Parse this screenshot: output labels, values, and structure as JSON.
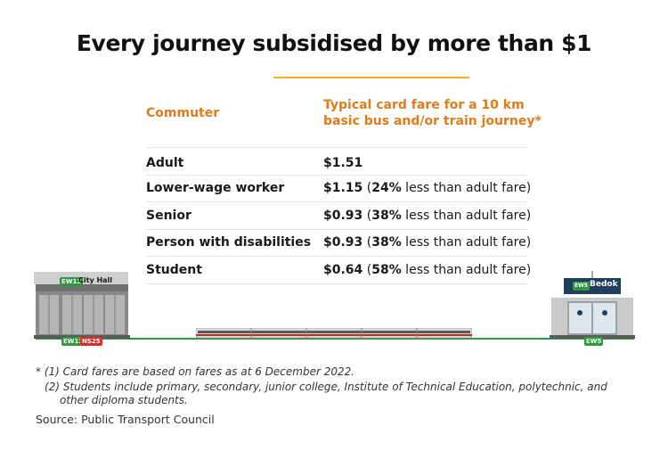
{
  "title": "Every journey subsidised by more than $1",
  "table": {
    "col1_header": "Commuter",
    "col2_header_line1": "Typical card fare for a 10 km",
    "col2_header_line2": "basic bus and/or train journey*",
    "rows": [
      {
        "commuter": "Adult",
        "fare": "$1.51",
        "discount": "",
        "rest": ""
      },
      {
        "commuter": "Lower-wage worker",
        "fare": "$1.15",
        "open": " (",
        "discount": "24%",
        "rest": " less than adult fare)"
      },
      {
        "commuter": "Senior",
        "fare": "$0.93",
        "open": " (",
        "discount": "38%",
        "rest": " less than adult fare)"
      },
      {
        "commuter": "Person with disabilities",
        "fare": "$0.93",
        "open": " (",
        "discount": "38%",
        "rest": " less than adult fare)"
      },
      {
        "commuter": "Student",
        "fare": "$0.64",
        "open": " (",
        "discount": "58%",
        "rest": " less than adult fare)"
      }
    ]
  },
  "stations": {
    "left": {
      "name": "City Hall",
      "code": "EW13",
      "codes_below": [
        "EW13",
        "NS25"
      ]
    },
    "right": {
      "name": "Bedok",
      "code": "EW5",
      "code_below": "EW5"
    }
  },
  "colors": {
    "ew_line": "#2f9a3c",
    "ns_line": "#d42e2e",
    "accent": "#e07b1a",
    "rule": "#f2b417"
  },
  "footnotes": {
    "line1": "* (1) Card fares are based on fares as at 6 December 2022.",
    "line2": "(2) Students include primary, secondary, junior college, Institute of Technical Education, polytechnic, and",
    "line3": "other diploma students."
  },
  "source": "Source: Public Transport Council"
}
